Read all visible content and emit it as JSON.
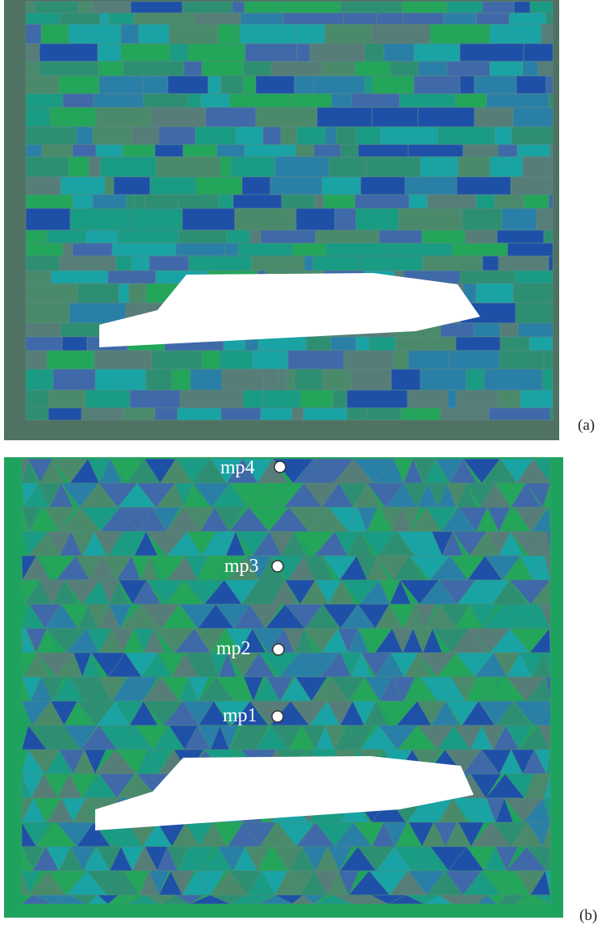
{
  "figure": {
    "panels": [
      {
        "id": "a",
        "label": "(a)",
        "mesh": "quadrilateral",
        "colors": {
          "frame": "#4f7263",
          "palette": [
            "#1f50a8",
            "#2a7fa6",
            "#1a9b83",
            "#23a55a",
            "#4a8a6b",
            "#577d78",
            "#3f69a8",
            "#19a3a4",
            "#2e8e72"
          ]
        }
      },
      {
        "id": "b",
        "label": "(b)",
        "mesh": "triangular",
        "colors": {
          "frame": "#1ea35e",
          "palette": [
            "#1f50a8",
            "#2a7fa6",
            "#1a9b83",
            "#23a55a",
            "#4a8a6b",
            "#577d78",
            "#3f69a8",
            "#19a3a4",
            "#2e8e72"
          ]
        },
        "monitoring_points": [
          {
            "name": "mp4"
          },
          {
            "name": "mp3"
          },
          {
            "name": "mp2"
          },
          {
            "name": "mp1"
          }
        ]
      }
    ],
    "obstacle_color": "#ffffff"
  }
}
